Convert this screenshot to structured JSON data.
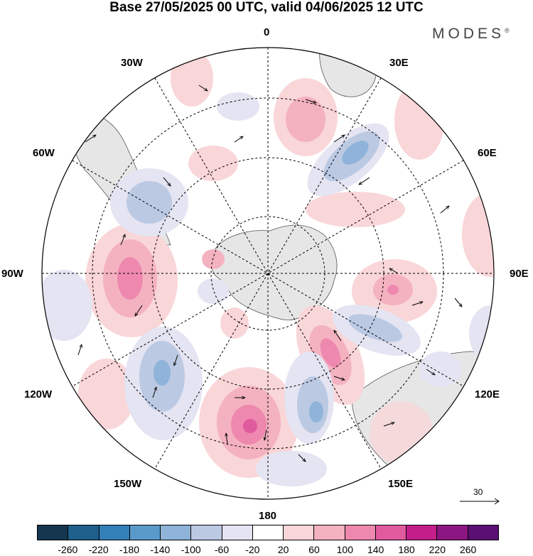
{
  "title": "Base 27/05/2025 00 UTC, valid 04/06/2025 12 UTC",
  "brand": {
    "name": "MODES",
    "mark": "®"
  },
  "longitude_labels": {
    "lon_0": "0",
    "lon_30e": "30E",
    "lon_60e": "60E",
    "lon_90e": "90E",
    "lon_120e": "120E",
    "lon_150e": "150E",
    "lon_180": "180",
    "lon_150w": "150W",
    "lon_120w": "120W",
    "lon_90w": "90W",
    "lon_60w": "60W",
    "lon_30w": "30W"
  },
  "reference_vector": {
    "label": "30"
  },
  "colorbar": {
    "ticks": [
      "-260",
      "-220",
      "-180",
      "-140",
      "-100",
      "-60",
      "-20",
      "20",
      "60",
      "100",
      "140",
      "180",
      "220",
      "260"
    ],
    "colors": [
      "#16364f",
      "#1f5f8b",
      "#3380b8",
      "#5a9acb",
      "#8fb3d9",
      "#bcc9e3",
      "#e4e4f2",
      "#ffffff",
      "#f9d6d8",
      "#f4b2c0",
      "#ee88ae",
      "#e05a9e",
      "#c41e8a",
      "#8c1681",
      "#5b0f73"
    ]
  },
  "map": {
    "projection": "polar-stereographic-south",
    "field": "anomaly",
    "land_color": "#e6e6e6"
  }
}
